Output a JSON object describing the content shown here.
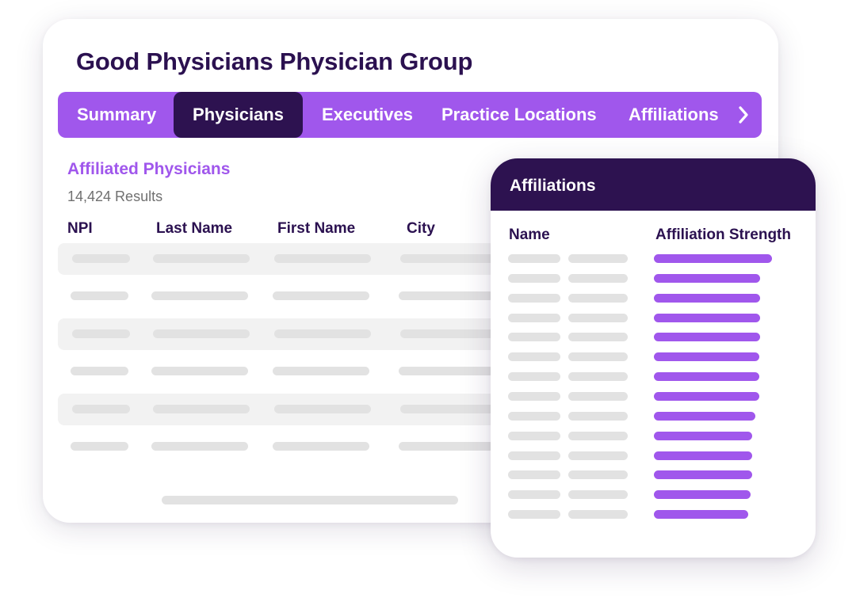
{
  "main": {
    "title": "Good Physicians Physician Group",
    "tabs": [
      {
        "label": "Summary",
        "active": false
      },
      {
        "label": "Physicians",
        "active": true
      },
      {
        "label": "Executives",
        "active": false
      },
      {
        "label": "Practice Locations",
        "active": false
      },
      {
        "label": "Affiliations",
        "active": false
      }
    ],
    "section_title": "Affiliated Physicians",
    "results": "14,424 Results",
    "columns": [
      "NPI",
      "Last Name",
      "First Name",
      "City"
    ],
    "row_count": 6
  },
  "affiliations": {
    "title": "Affiliations",
    "columns": [
      "Name",
      "Affiliation Strength"
    ],
    "strength_fractions": [
      1.0,
      0.9,
      0.9,
      0.9,
      0.9,
      0.89,
      0.89,
      0.89,
      0.86,
      0.83,
      0.83,
      0.83,
      0.82,
      0.8
    ]
  },
  "icons": {
    "tab_next": "chevron-right-icon"
  },
  "colors": {
    "accent": "#a057ec",
    "dark": "#2d1250",
    "placeholder": "#e2e2e2"
  }
}
